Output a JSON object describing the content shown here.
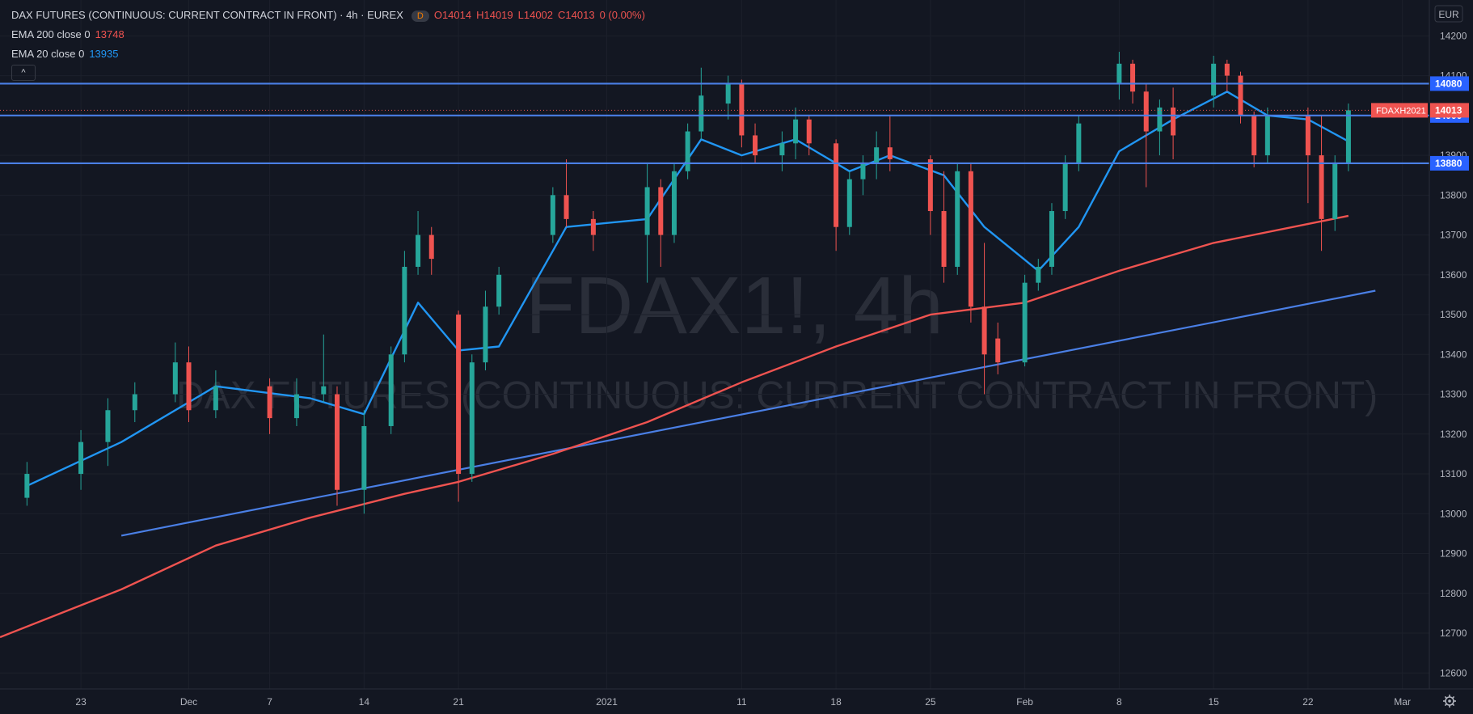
{
  "header": {
    "title": "DAX FUTURES (CONTINUOUS: CURRENT CONTRACT IN FRONT) · 4h · EUREX",
    "badge": "D",
    "ohlc": {
      "o": "O14014",
      "h": "H14019",
      "l": "L14002",
      "c": "C14013",
      "chg": "0 (0.00%)"
    },
    "ema200": {
      "label": "EMA 200 close 0",
      "value": "13748",
      "color": "#ef5350"
    },
    "ema20": {
      "label": "EMA 20 close 0",
      "value": "13935",
      "color": "#2196f3"
    },
    "collapse_icon": "^"
  },
  "currency_button": "EUR",
  "settings_icon": "gear-icon",
  "watermark": {
    "symbol": "FDAX1!, 4h",
    "description": "DAX FUTURES (CONTINUOUS: CURRENT CONTRACT IN FRONT)"
  },
  "chart_data": {
    "type": "candlestick",
    "symbol": "FDAXH2021",
    "timeframe": "4h",
    "currency": "EUR",
    "y_range": [
      12560,
      14290
    ],
    "y_ticks": [
      12600,
      12700,
      12800,
      12900,
      13000,
      13100,
      13200,
      13300,
      13400,
      13500,
      13600,
      13700,
      13800,
      13900,
      14000,
      14100,
      14200
    ],
    "x_ticks": [
      "23",
      "Dec",
      "7",
      "14",
      "21",
      "2021",
      "11",
      "18",
      "25",
      "Feb",
      "8",
      "15",
      "22",
      "Mar"
    ],
    "last_price": {
      "value": 14013,
      "label": "14013",
      "symbol_label": "FDAXH2021"
    },
    "horizontal_levels": [
      {
        "value": 14080,
        "label": "14080"
      },
      {
        "value": 14000,
        "label": "14000"
      },
      {
        "value": 13880,
        "label": "13880"
      }
    ],
    "trendline": {
      "start": {
        "x": "Nov 26",
        "y": 12945
      },
      "end": {
        "x": "Feb 27",
        "y": 13560
      }
    },
    "series": [
      {
        "name": "EMA 20 close 0",
        "color": "#2196f3",
        "last": 13935,
        "x": [
          "Nov 19",
          "Nov 26",
          "Dec 3",
          "Dec 10",
          "Dec 14",
          "Dec 18",
          "Dec 21",
          "Dec 24",
          "Dec 29",
          "Jan 4",
          "Jan 8",
          "Jan 11",
          "Jan 15",
          "Jan 19",
          "Jan 22",
          "Jan 26",
          "Jan 29",
          "Feb 2",
          "Feb 5",
          "Feb 8",
          "Feb 12",
          "Feb 16",
          "Feb 19",
          "Feb 22",
          "Feb 25"
        ],
        "values": [
          13070,
          13180,
          13320,
          13290,
          13250,
          13530,
          13410,
          13420,
          13720,
          13740,
          13940,
          13900,
          13940,
          13860,
          13900,
          13850,
          13720,
          13610,
          13720,
          13910,
          13990,
          14060,
          14000,
          13990,
          13935
        ]
      },
      {
        "name": "EMA 200 close 0",
        "color": "#ef5350",
        "last": 13748,
        "x": [
          "Nov 17",
          "Nov 26",
          "Dec 3",
          "Dec 10",
          "Dec 17",
          "Dec 21",
          "Dec 28",
          "Jan 4",
          "Jan 11",
          "Jan 18",
          "Jan 25",
          "Feb 1",
          "Feb 8",
          "Feb 15",
          "Feb 25"
        ],
        "values": [
          12690,
          12810,
          12920,
          12990,
          13050,
          13080,
          13150,
          13230,
          13330,
          13420,
          13500,
          13530,
          13610,
          13680,
          13748
        ]
      }
    ],
    "candles": [
      {
        "x": "Nov 19",
        "o": 13040,
        "h": 13130,
        "l": 13020,
        "c": 13100
      },
      {
        "x": "Nov 23",
        "o": 13100,
        "h": 13210,
        "l": 13060,
        "c": 13180
      },
      {
        "x": "Nov 25",
        "o": 13180,
        "h": 13290,
        "l": 13120,
        "c": 13260
      },
      {
        "x": "Nov 27",
        "o": 13260,
        "h": 13330,
        "l": 13230,
        "c": 13300
      },
      {
        "x": "Nov 30",
        "o": 13300,
        "h": 13430,
        "l": 13280,
        "c": 13380
      },
      {
        "x": "Dec 1",
        "o": 13380,
        "h": 13420,
        "l": 13230,
        "c": 13260
      },
      {
        "x": "Dec 3",
        "o": 13260,
        "h": 13360,
        "l": 13240,
        "c": 13320
      },
      {
        "x": "Dec 7",
        "o": 13320,
        "h": 13340,
        "l": 13200,
        "c": 13240
      },
      {
        "x": "Dec 9",
        "o": 13240,
        "h": 13340,
        "l": 13220,
        "c": 13300
      },
      {
        "x": "Dec 11",
        "o": 13300,
        "h": 13450,
        "l": 13280,
        "c": 13320
      },
      {
        "x": "Dec 12",
        "o": 13300,
        "h": 13320,
        "l": 13020,
        "c": 13060
      },
      {
        "x": "Dec 14",
        "o": 13060,
        "h": 13260,
        "l": 13000,
        "c": 13220
      },
      {
        "x": "Dec 16",
        "o": 13220,
        "h": 13420,
        "l": 13200,
        "c": 13400
      },
      {
        "x": "Dec 17",
        "o": 13400,
        "h": 13660,
        "l": 13380,
        "c": 13620
      },
      {
        "x": "Dec 18",
        "o": 13620,
        "h": 13760,
        "l": 13600,
        "c": 13700
      },
      {
        "x": "Dec 19",
        "o": 13700,
        "h": 13720,
        "l": 13600,
        "c": 13640
      },
      {
        "x": "Dec 21",
        "o": 13500,
        "h": 13510,
        "l": 13030,
        "c": 13100
      },
      {
        "x": "Dec 22",
        "o": 13100,
        "h": 13400,
        "l": 13080,
        "c": 13380
      },
      {
        "x": "Dec 23",
        "o": 13380,
        "h": 13560,
        "l": 13360,
        "c": 13520
      },
      {
        "x": "Dec 24",
        "o": 13520,
        "h": 13620,
        "l": 13500,
        "c": 13600
      },
      {
        "x": "Dec 28",
        "o": 13700,
        "h": 13820,
        "l": 13680,
        "c": 13800
      },
      {
        "x": "Dec 29",
        "o": 13800,
        "h": 13890,
        "l": 13720,
        "c": 13740
      },
      {
        "x": "Dec 31",
        "o": 13740,
        "h": 13760,
        "l": 13660,
        "c": 13700
      },
      {
        "x": "Jan 4",
        "o": 13700,
        "h": 13880,
        "l": 13580,
        "c": 13820
      },
      {
        "x": "Jan 5",
        "o": 13820,
        "h": 13840,
        "l": 13620,
        "c": 13700
      },
      {
        "x": "Jan 6",
        "o": 13700,
        "h": 13880,
        "l": 13680,
        "c": 13860
      },
      {
        "x": "Jan 7",
        "o": 13860,
        "h": 13980,
        "l": 13840,
        "c": 13960
      },
      {
        "x": "Jan 8",
        "o": 13960,
        "h": 14120,
        "l": 13940,
        "c": 14050
      },
      {
        "x": "Jan 10",
        "o": 14030,
        "h": 14100,
        "l": 13990,
        "c": 14080
      },
      {
        "x": "Jan 11",
        "o": 14080,
        "h": 14090,
        "l": 13920,
        "c": 13950
      },
      {
        "x": "Jan 12",
        "o": 13950,
        "h": 13980,
        "l": 13880,
        "c": 13900
      },
      {
        "x": "Jan 14",
        "o": 13900,
        "h": 13960,
        "l": 13860,
        "c": 13930
      },
      {
        "x": "Jan 15",
        "o": 13930,
        "h": 14020,
        "l": 13890,
        "c": 13990
      },
      {
        "x": "Jan 16",
        "o": 13990,
        "h": 14000,
        "l": 13900,
        "c": 13930
      },
      {
        "x": "Jan 18",
        "o": 13930,
        "h": 13940,
        "l": 13660,
        "c": 13720
      },
      {
        "x": "Jan 19",
        "o": 13720,
        "h": 13860,
        "l": 13700,
        "c": 13840
      },
      {
        "x": "Jan 20",
        "o": 13840,
        "h": 13900,
        "l": 13800,
        "c": 13880
      },
      {
        "x": "Jan 21",
        "o": 13880,
        "h": 13960,
        "l": 13840,
        "c": 13920
      },
      {
        "x": "Jan 22",
        "o": 13920,
        "h": 14000,
        "l": 13860,
        "c": 13890
      },
      {
        "x": "Jan 25",
        "o": 13890,
        "h": 13900,
        "l": 13700,
        "c": 13760
      },
      {
        "x": "Jan 26",
        "o": 13760,
        "h": 13860,
        "l": 13580,
        "c": 13620
      },
      {
        "x": "Jan 27",
        "o": 13620,
        "h": 13880,
        "l": 13600,
        "c": 13860
      },
      {
        "x": "Jan 28",
        "o": 13860,
        "h": 13880,
        "l": 13480,
        "c": 13520
      },
      {
        "x": "Jan 29",
        "o": 13520,
        "h": 13680,
        "l": 13300,
        "c": 13400
      },
      {
        "x": "Jan 30",
        "o": 13440,
        "h": 13480,
        "l": 13350,
        "c": 13380
      },
      {
        "x": "Feb 1",
        "o": 13380,
        "h": 13600,
        "l": 13370,
        "c": 13580
      },
      {
        "x": "Feb 2",
        "o": 13580,
        "h": 13640,
        "l": 13560,
        "c": 13620
      },
      {
        "x": "Feb 3",
        "o": 13620,
        "h": 13780,
        "l": 13600,
        "c": 13760
      },
      {
        "x": "Feb 4",
        "o": 13760,
        "h": 13900,
        "l": 13740,
        "c": 13880
      },
      {
        "x": "Feb 5",
        "o": 13880,
        "h": 14000,
        "l": 13860,
        "c": 13980
      },
      {
        "x": "Feb 8",
        "o": 14080,
        "h": 14160,
        "l": 14040,
        "c": 14130
      },
      {
        "x": "Feb 9",
        "o": 14130,
        "h": 14140,
        "l": 14030,
        "c": 14060
      },
      {
        "x": "Feb 10",
        "o": 14060,
        "h": 14080,
        "l": 13820,
        "c": 13960
      },
      {
        "x": "Feb 11",
        "o": 13960,
        "h": 14040,
        "l": 13900,
        "c": 14020
      },
      {
        "x": "Feb 12",
        "o": 14020,
        "h": 14070,
        "l": 13890,
        "c": 13950
      },
      {
        "x": "Feb 15",
        "o": 14050,
        "h": 14150,
        "l": 14020,
        "c": 14130
      },
      {
        "x": "Feb 16",
        "o": 14130,
        "h": 14140,
        "l": 14060,
        "c": 14100
      },
      {
        "x": "Feb 17",
        "o": 14100,
        "h": 14110,
        "l": 13980,
        "c": 14000
      },
      {
        "x": "Feb 18",
        "o": 14000,
        "h": 14010,
        "l": 13870,
        "c": 13900
      },
      {
        "x": "Feb 19",
        "o": 13900,
        "h": 14020,
        "l": 13880,
        "c": 14000
      },
      {
        "x": "Feb 22",
        "o": 14000,
        "h": 14020,
        "l": 13780,
        "c": 13900
      },
      {
        "x": "Feb 23",
        "o": 13900,
        "h": 14000,
        "l": 13660,
        "c": 13740
      },
      {
        "x": "Feb 24",
        "o": 13740,
        "h": 13900,
        "l": 13710,
        "c": 13880
      },
      {
        "x": "Feb 25",
        "o": 13880,
        "h": 14030,
        "l": 13860,
        "c": 14013
      }
    ]
  }
}
